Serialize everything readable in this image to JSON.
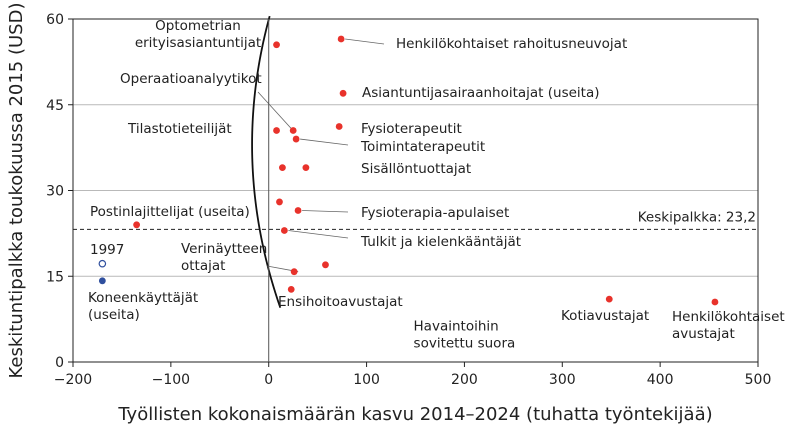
{
  "chart_data": {
    "type": "scatter",
    "xlabel": "Työllisten kokonaismäärän kasvu 2014–2024 (tuhatta työntekijää)",
    "ylabel": "Keskituntipalkka toukokuussa 2015 (USD)",
    "xlim": [
      -200,
      500
    ],
    "ylim": [
      0,
      60
    ],
    "x_ticks": [
      -200,
      -100,
      0,
      100,
      200,
      300,
      400,
      500
    ],
    "x_tick_labels": [
      "−200",
      "−100",
      "0",
      "100",
      "200",
      "300",
      "400",
      "500"
    ],
    "y_ticks": [
      0,
      15,
      30,
      45,
      60
    ],
    "y_tick_labels": [
      "0",
      "15",
      "30",
      "45",
      "60"
    ],
    "grid": {
      "horizontal": true,
      "vertical": false
    },
    "colors": {
      "points": "#e8322b",
      "machine_2015": "#2f4f9e",
      "machine_1997": "#2f4f9e",
      "curve": "#111111",
      "grid": "#b9b9b9"
    },
    "points": [
      {
        "label_lines": [
          "Optometrian",
          "erityisasiantuntijat"
        ],
        "x": 8,
        "y": 55.5
      },
      {
        "label_lines": [
          "Henkilökohtaiset rahoitusneuvojat"
        ],
        "x": 74,
        "y": 56.5
      },
      {
        "label_lines": [
          "Asiantuntijasairaanhoitajat (useita)"
        ],
        "x": 76,
        "y": 47
      },
      {
        "label_lines": [
          "Tilastotieteilijät"
        ],
        "x": 8,
        "y": 40.5
      },
      {
        "label_lines": [],
        "x": 25,
        "y": 40.5
      },
      {
        "label_lines": [
          "Fysioterapeutit"
        ],
        "x": 72,
        "y": 41.2
      },
      {
        "label_lines": [
          "Toimintaterapeutit"
        ],
        "x": 28,
        "y": 39
      },
      {
        "label_lines": [],
        "x": 14,
        "y": 34
      },
      {
        "label_lines": [
          "Sisällöntuottajat"
        ],
        "x": 38,
        "y": 34
      },
      {
        "label_lines": [],
        "x": 11,
        "y": 28
      },
      {
        "label_lines": [
          "Fysioterapia-apulaiset"
        ],
        "x": 30,
        "y": 26.5
      },
      {
        "label_lines": [
          "Postinlajittelijat (useita)"
        ],
        "x": -135,
        "y": 24
      },
      {
        "label_lines": [
          "Tulkit ja kielenkääntäjät"
        ],
        "x": 16,
        "y": 23
      },
      {
        "label_lines": [],
        "x": 58,
        "y": 17
      },
      {
        "label_lines": [
          "Verinäytteen",
          "ottajat"
        ],
        "x": 26,
        "y": 15.8
      },
      {
        "label_lines": [
          "Ensihoitoavustajat"
        ],
        "x": 23,
        "y": 12.7
      },
      {
        "label_lines": [
          "Kotiavustajat"
        ],
        "x": 348,
        "y": 11
      },
      {
        "label_lines": [
          "Henkilökohtaiset",
          "avustajat"
        ],
        "x": 456,
        "y": 10.5
      }
    ],
    "special_points": {
      "label_lines": [
        "Koneenkäyttäjät",
        "(useita)"
      ],
      "year_label": "1997",
      "x": -170,
      "y_2015": 14.2,
      "y_1997": 17.2
    },
    "mean_line": {
      "y": 23.2,
      "label": "Keskipalkka: 23,2"
    },
    "fitted_curve_label": [
      "Havaintoihin",
      "sovitettu suora"
    ],
    "fitted_curve": {
      "vertex_x": -17,
      "vertex_y": 38,
      "a": 0.0355,
      "y_range": [
        9.5,
        60.5
      ]
    }
  }
}
